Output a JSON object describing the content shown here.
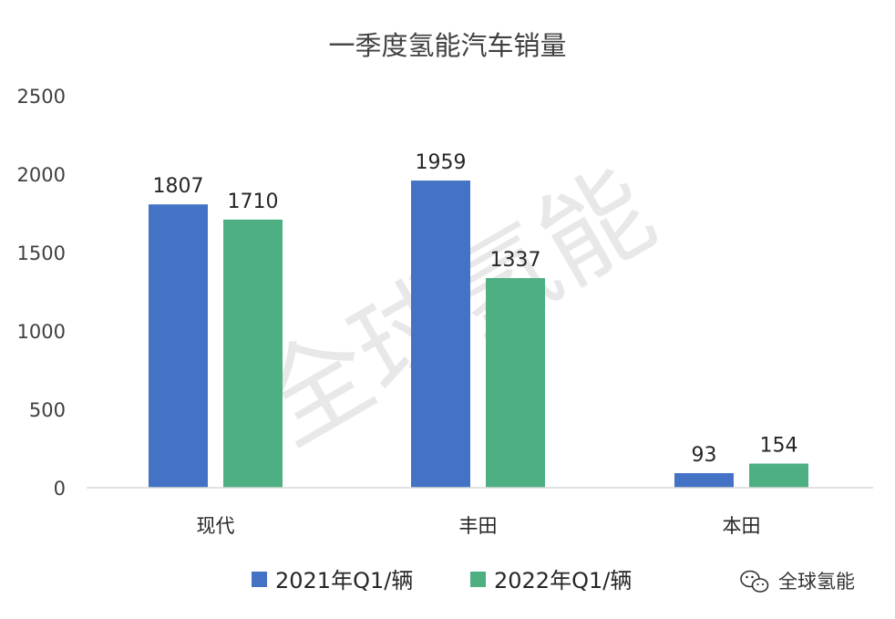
{
  "chart_data": {
    "type": "bar",
    "title": "一季度氢能汽车销量",
    "categories": [
      "现代",
      "丰田",
      "本田"
    ],
    "series": [
      {
        "name": "2021年Q1/辆",
        "values": [
          1807,
          1959,
          93
        ],
        "color": "#4472C4"
      },
      {
        "name": "2022年Q1/辆",
        "values": [
          1710,
          1337,
          154
        ],
        "color": "#4EAF83"
      }
    ],
    "ylim": [
      0,
      2500
    ],
    "yticks": [
      0,
      500,
      1000,
      1500,
      2000,
      2500
    ],
    "grid": false,
    "data_labels": true,
    "legend": "bottom"
  },
  "watermark": "全球氢能",
  "brand": {
    "icon": "wechat-icon",
    "label": "全球氢能"
  }
}
